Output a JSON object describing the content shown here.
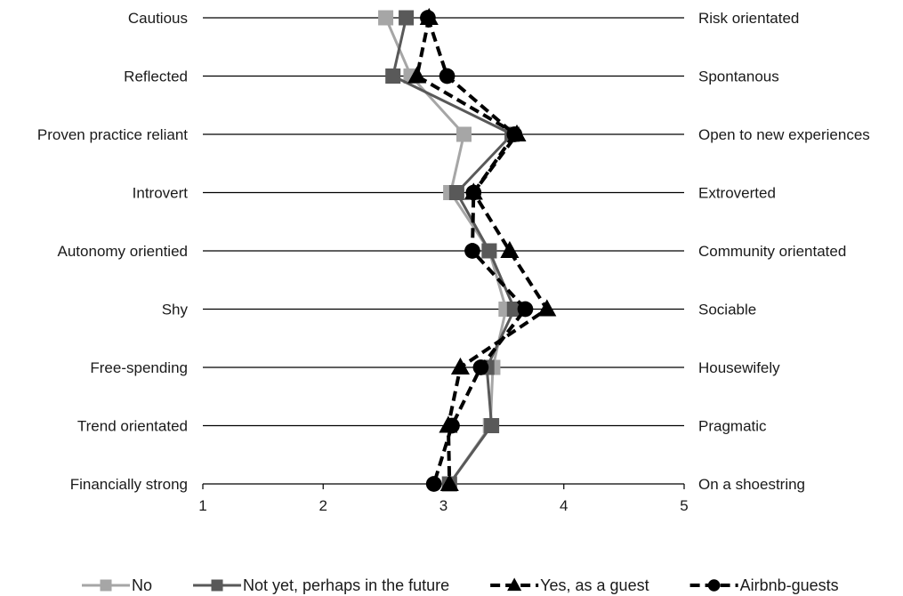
{
  "chart_data": {
    "type": "line",
    "orientation": "horizontal-profile",
    "title": "",
    "xlim": [
      1,
      5
    ],
    "x_ticks": [
      "1",
      "2",
      "3",
      "4",
      "5"
    ],
    "left_labels": [
      "Cautious",
      "Reflected",
      "Proven practice reliant",
      "Introvert",
      "Autonomy orientied",
      "Shy",
      "Free-spending",
      "Trend orientated",
      "Financially strong"
    ],
    "right_labels": [
      "Risk orientated",
      "Spontanous",
      "Open to new experiences",
      "Extroverted",
      "Community orientated",
      "Sociable",
      "Housewifely",
      "Pragmatic",
      "On a shoestring"
    ],
    "grid": true,
    "legend_position": "bottom",
    "series": [
      {
        "name": "No",
        "color": "#a6a6a6",
        "line": "solid",
        "marker": "square",
        "values": [
          2.52,
          2.73,
          3.17,
          3.06,
          3.38,
          3.52,
          3.41,
          3.39,
          3.05
        ]
      },
      {
        "name": "Not yet, perhaps in the future",
        "color": "#595959",
        "line": "solid",
        "marker": "square",
        "values": [
          2.69,
          2.58,
          3.57,
          3.11,
          3.38,
          3.59,
          3.36,
          3.4,
          3.05
        ]
      },
      {
        "name": "Yes, as a guest",
        "color": "#000000",
        "line": "dashed",
        "marker": "triangle",
        "values": [
          2.88,
          2.78,
          3.61,
          3.25,
          3.55,
          3.86,
          3.14,
          3.04,
          3.05
        ]
      },
      {
        "name": "Airbnb-guests",
        "color": "#000000",
        "line": "dashed",
        "marker": "circle",
        "values": [
          2.87,
          3.03,
          3.59,
          3.25,
          3.24,
          3.68,
          3.31,
          3.07,
          2.92
        ]
      }
    ]
  }
}
